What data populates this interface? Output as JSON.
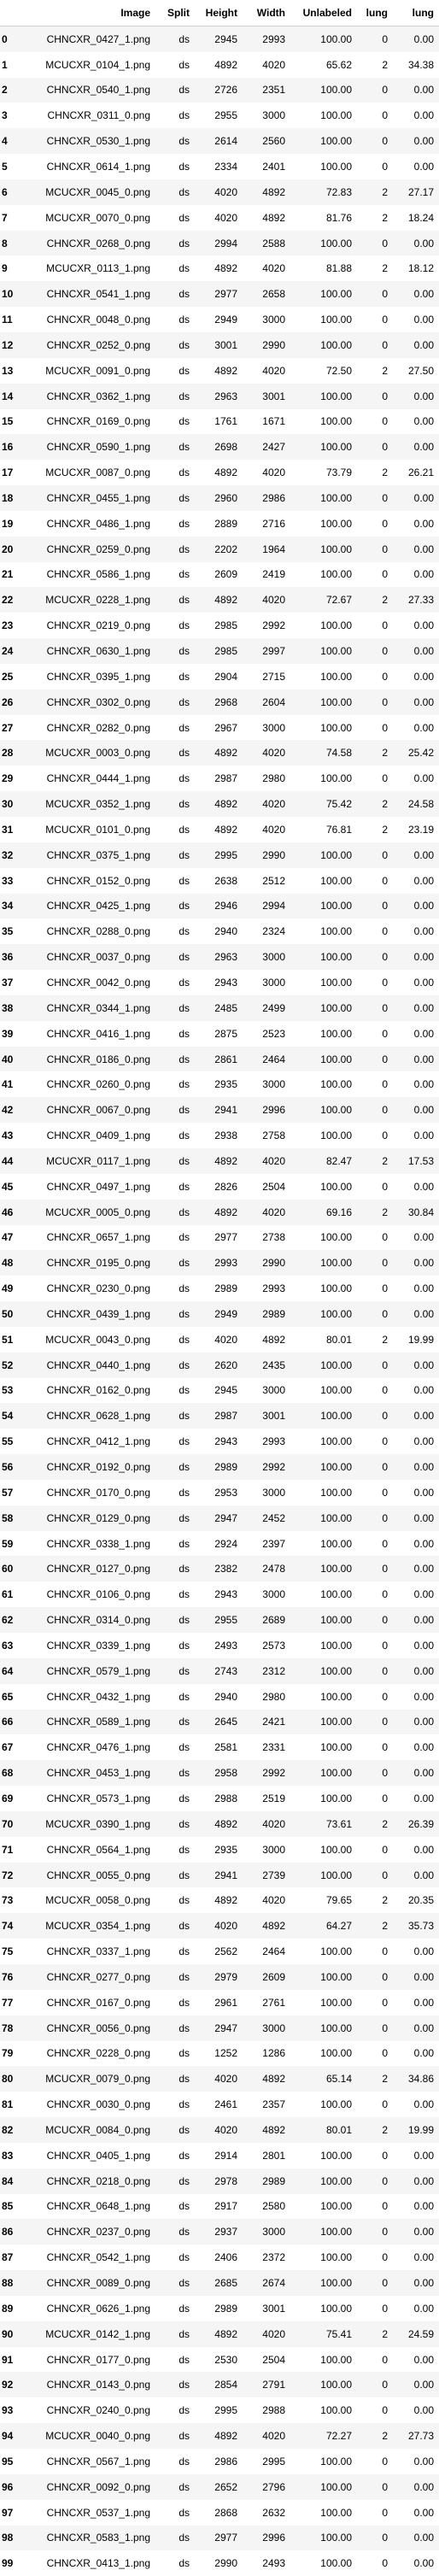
{
  "table": {
    "headers": [
      "",
      "Image",
      "Split",
      "Height",
      "Width",
      "Unlabeled",
      "lung",
      "lung"
    ],
    "rows": [
      [
        "0",
        "CHNCXR_0427_1.png",
        "ds",
        "2945",
        "2993",
        "100.00",
        "0",
        "0.00"
      ],
      [
        "1",
        "MCUCXR_0104_1.png",
        "ds",
        "4892",
        "4020",
        "65.62",
        "2",
        "34.38"
      ],
      [
        "2",
        "CHNCXR_0540_1.png",
        "ds",
        "2726",
        "2351",
        "100.00",
        "0",
        "0.00"
      ],
      [
        "3",
        "CHNCXR_0311_0.png",
        "ds",
        "2955",
        "3000",
        "100.00",
        "0",
        "0.00"
      ],
      [
        "4",
        "CHNCXR_0530_1.png",
        "ds",
        "2614",
        "2560",
        "100.00",
        "0",
        "0.00"
      ],
      [
        "5",
        "CHNCXR_0614_1.png",
        "ds",
        "2334",
        "2401",
        "100.00",
        "0",
        "0.00"
      ],
      [
        "6",
        "MCUCXR_0045_0.png",
        "ds",
        "4020",
        "4892",
        "72.83",
        "2",
        "27.17"
      ],
      [
        "7",
        "MCUCXR_0070_0.png",
        "ds",
        "4020",
        "4892",
        "81.76",
        "2",
        "18.24"
      ],
      [
        "8",
        "CHNCXR_0268_0.png",
        "ds",
        "2994",
        "2588",
        "100.00",
        "0",
        "0.00"
      ],
      [
        "9",
        "MCUCXR_0113_1.png",
        "ds",
        "4892",
        "4020",
        "81.88",
        "2",
        "18.12"
      ],
      [
        "10",
        "CHNCXR_0541_1.png",
        "ds",
        "2977",
        "2658",
        "100.00",
        "0",
        "0.00"
      ],
      [
        "11",
        "CHNCXR_0048_0.png",
        "ds",
        "2949",
        "3000",
        "100.00",
        "0",
        "0.00"
      ],
      [
        "12",
        "CHNCXR_0252_0.png",
        "ds",
        "3001",
        "2990",
        "100.00",
        "0",
        "0.00"
      ],
      [
        "13",
        "MCUCXR_0091_0.png",
        "ds",
        "4892",
        "4020",
        "72.50",
        "2",
        "27.50"
      ],
      [
        "14",
        "CHNCXR_0362_1.png",
        "ds",
        "2963",
        "3001",
        "100.00",
        "0",
        "0.00"
      ],
      [
        "15",
        "CHNCXR_0169_0.png",
        "ds",
        "1761",
        "1671",
        "100.00",
        "0",
        "0.00"
      ],
      [
        "16",
        "CHNCXR_0590_1.png",
        "ds",
        "2698",
        "2427",
        "100.00",
        "0",
        "0.00"
      ],
      [
        "17",
        "MCUCXR_0087_0.png",
        "ds",
        "4892",
        "4020",
        "73.79",
        "2",
        "26.21"
      ],
      [
        "18",
        "CHNCXR_0455_1.png",
        "ds",
        "2960",
        "2986",
        "100.00",
        "0",
        "0.00"
      ],
      [
        "19",
        "CHNCXR_0486_1.png",
        "ds",
        "2889",
        "2716",
        "100.00",
        "0",
        "0.00"
      ],
      [
        "20",
        "CHNCXR_0259_0.png",
        "ds",
        "2202",
        "1964",
        "100.00",
        "0",
        "0.00"
      ],
      [
        "21",
        "CHNCXR_0586_1.png",
        "ds",
        "2609",
        "2419",
        "100.00",
        "0",
        "0.00"
      ],
      [
        "22",
        "MCUCXR_0228_1.png",
        "ds",
        "4892",
        "4020",
        "72.67",
        "2",
        "27.33"
      ],
      [
        "23",
        "CHNCXR_0219_0.png",
        "ds",
        "2985",
        "2992",
        "100.00",
        "0",
        "0.00"
      ],
      [
        "24",
        "CHNCXR_0630_1.png",
        "ds",
        "2985",
        "2997",
        "100.00",
        "0",
        "0.00"
      ],
      [
        "25",
        "CHNCXR_0395_1.png",
        "ds",
        "2904",
        "2715",
        "100.00",
        "0",
        "0.00"
      ],
      [
        "26",
        "CHNCXR_0302_0.png",
        "ds",
        "2968",
        "2604",
        "100.00",
        "0",
        "0.00"
      ],
      [
        "27",
        "CHNCXR_0282_0.png",
        "ds",
        "2967",
        "3000",
        "100.00",
        "0",
        "0.00"
      ],
      [
        "28",
        "MCUCXR_0003_0.png",
        "ds",
        "4892",
        "4020",
        "74.58",
        "2",
        "25.42"
      ],
      [
        "29",
        "CHNCXR_0444_1.png",
        "ds",
        "2987",
        "2980",
        "100.00",
        "0",
        "0.00"
      ],
      [
        "30",
        "MCUCXR_0352_1.png",
        "ds",
        "4892",
        "4020",
        "75.42",
        "2",
        "24.58"
      ],
      [
        "31",
        "MCUCXR_0101_0.png",
        "ds",
        "4892",
        "4020",
        "76.81",
        "2",
        "23.19"
      ],
      [
        "32",
        "CHNCXR_0375_1.png",
        "ds",
        "2995",
        "2990",
        "100.00",
        "0",
        "0.00"
      ],
      [
        "33",
        "CHNCXR_0152_0.png",
        "ds",
        "2638",
        "2512",
        "100.00",
        "0",
        "0.00"
      ],
      [
        "34",
        "CHNCXR_0425_1.png",
        "ds",
        "2946",
        "2994",
        "100.00",
        "0",
        "0.00"
      ],
      [
        "35",
        "CHNCXR_0288_0.png",
        "ds",
        "2940",
        "2324",
        "100.00",
        "0",
        "0.00"
      ],
      [
        "36",
        "CHNCXR_0037_0.png",
        "ds",
        "2963",
        "3000",
        "100.00",
        "0",
        "0.00"
      ],
      [
        "37",
        "CHNCXR_0042_0.png",
        "ds",
        "2943",
        "3000",
        "100.00",
        "0",
        "0.00"
      ],
      [
        "38",
        "CHNCXR_0344_1.png",
        "ds",
        "2485",
        "2499",
        "100.00",
        "0",
        "0.00"
      ],
      [
        "39",
        "CHNCXR_0416_1.png",
        "ds",
        "2875",
        "2523",
        "100.00",
        "0",
        "0.00"
      ],
      [
        "40",
        "CHNCXR_0186_0.png",
        "ds",
        "2861",
        "2464",
        "100.00",
        "0",
        "0.00"
      ],
      [
        "41",
        "CHNCXR_0260_0.png",
        "ds",
        "2935",
        "3000",
        "100.00",
        "0",
        "0.00"
      ],
      [
        "42",
        "CHNCXR_0067_0.png",
        "ds",
        "2941",
        "2996",
        "100.00",
        "0",
        "0.00"
      ],
      [
        "43",
        "CHNCXR_0409_1.png",
        "ds",
        "2938",
        "2758",
        "100.00",
        "0",
        "0.00"
      ],
      [
        "44",
        "MCUCXR_0117_1.png",
        "ds",
        "4892",
        "4020",
        "82.47",
        "2",
        "17.53"
      ],
      [
        "45",
        "CHNCXR_0497_1.png",
        "ds",
        "2826",
        "2504",
        "100.00",
        "0",
        "0.00"
      ],
      [
        "46",
        "MCUCXR_0005_0.png",
        "ds",
        "4892",
        "4020",
        "69.16",
        "2",
        "30.84"
      ],
      [
        "47",
        "CHNCXR_0657_1.png",
        "ds",
        "2977",
        "2738",
        "100.00",
        "0",
        "0.00"
      ],
      [
        "48",
        "CHNCXR_0195_0.png",
        "ds",
        "2993",
        "2990",
        "100.00",
        "0",
        "0.00"
      ],
      [
        "49",
        "CHNCXR_0230_0.png",
        "ds",
        "2989",
        "2993",
        "100.00",
        "0",
        "0.00"
      ],
      [
        "50",
        "CHNCXR_0439_1.png",
        "ds",
        "2949",
        "2989",
        "100.00",
        "0",
        "0.00"
      ],
      [
        "51",
        "MCUCXR_0043_0.png",
        "ds",
        "4020",
        "4892",
        "80.01",
        "2",
        "19.99"
      ],
      [
        "52",
        "CHNCXR_0440_1.png",
        "ds",
        "2620",
        "2435",
        "100.00",
        "0",
        "0.00"
      ],
      [
        "53",
        "CHNCXR_0162_0.png",
        "ds",
        "2945",
        "3000",
        "100.00",
        "0",
        "0.00"
      ],
      [
        "54",
        "CHNCXR_0628_1.png",
        "ds",
        "2987",
        "3001",
        "100.00",
        "0",
        "0.00"
      ],
      [
        "55",
        "CHNCXR_0412_1.png",
        "ds",
        "2943",
        "2993",
        "100.00",
        "0",
        "0.00"
      ],
      [
        "56",
        "CHNCXR_0192_0.png",
        "ds",
        "2989",
        "2992",
        "100.00",
        "0",
        "0.00"
      ],
      [
        "57",
        "CHNCXR_0170_0.png",
        "ds",
        "2953",
        "3000",
        "100.00",
        "0",
        "0.00"
      ],
      [
        "58",
        "CHNCXR_0129_0.png",
        "ds",
        "2947",
        "2452",
        "100.00",
        "0",
        "0.00"
      ],
      [
        "59",
        "CHNCXR_0338_1.png",
        "ds",
        "2924",
        "2397",
        "100.00",
        "0",
        "0.00"
      ],
      [
        "60",
        "CHNCXR_0127_0.png",
        "ds",
        "2382",
        "2478",
        "100.00",
        "0",
        "0.00"
      ],
      [
        "61",
        "CHNCXR_0106_0.png",
        "ds",
        "2943",
        "3000",
        "100.00",
        "0",
        "0.00"
      ],
      [
        "62",
        "CHNCXR_0314_0.png",
        "ds",
        "2955",
        "2689",
        "100.00",
        "0",
        "0.00"
      ],
      [
        "63",
        "CHNCXR_0339_1.png",
        "ds",
        "2493",
        "2573",
        "100.00",
        "0",
        "0.00"
      ],
      [
        "64",
        "CHNCXR_0579_1.png",
        "ds",
        "2743",
        "2312",
        "100.00",
        "0",
        "0.00"
      ],
      [
        "65",
        "CHNCXR_0432_1.png",
        "ds",
        "2940",
        "2980",
        "100.00",
        "0",
        "0.00"
      ],
      [
        "66",
        "CHNCXR_0589_1.png",
        "ds",
        "2645",
        "2421",
        "100.00",
        "0",
        "0.00"
      ],
      [
        "67",
        "CHNCXR_0476_1.png",
        "ds",
        "2581",
        "2331",
        "100.00",
        "0",
        "0.00"
      ],
      [
        "68",
        "CHNCXR_0453_1.png",
        "ds",
        "2958",
        "2992",
        "100.00",
        "0",
        "0.00"
      ],
      [
        "69",
        "CHNCXR_0573_1.png",
        "ds",
        "2988",
        "2519",
        "100.00",
        "0",
        "0.00"
      ],
      [
        "70",
        "MCUCXR_0390_1.png",
        "ds",
        "4892",
        "4020",
        "73.61",
        "2",
        "26.39"
      ],
      [
        "71",
        "CHNCXR_0564_1.png",
        "ds",
        "2935",
        "3000",
        "100.00",
        "0",
        "0.00"
      ],
      [
        "72",
        "CHNCXR_0055_0.png",
        "ds",
        "2941",
        "2739",
        "100.00",
        "0",
        "0.00"
      ],
      [
        "73",
        "MCUCXR_0058_0.png",
        "ds",
        "4892",
        "4020",
        "79.65",
        "2",
        "20.35"
      ],
      [
        "74",
        "MCUCXR_0354_1.png",
        "ds",
        "4020",
        "4892",
        "64.27",
        "2",
        "35.73"
      ],
      [
        "75",
        "CHNCXR_0337_1.png",
        "ds",
        "2562",
        "2464",
        "100.00",
        "0",
        "0.00"
      ],
      [
        "76",
        "CHNCXR_0277_0.png",
        "ds",
        "2979",
        "2609",
        "100.00",
        "0",
        "0.00"
      ],
      [
        "77",
        "CHNCXR_0167_0.png",
        "ds",
        "2961",
        "2761",
        "100.00",
        "0",
        "0.00"
      ],
      [
        "78",
        "CHNCXR_0056_0.png",
        "ds",
        "2947",
        "3000",
        "100.00",
        "0",
        "0.00"
      ],
      [
        "79",
        "CHNCXR_0228_0.png",
        "ds",
        "1252",
        "1286",
        "100.00",
        "0",
        "0.00"
      ],
      [
        "80",
        "MCUCXR_0079_0.png",
        "ds",
        "4020",
        "4892",
        "65.14",
        "2",
        "34.86"
      ],
      [
        "81",
        "CHNCXR_0030_0.png",
        "ds",
        "2461",
        "2357",
        "100.00",
        "0",
        "0.00"
      ],
      [
        "82",
        "MCUCXR_0084_0.png",
        "ds",
        "4020",
        "4892",
        "80.01",
        "2",
        "19.99"
      ],
      [
        "83",
        "CHNCXR_0405_1.png",
        "ds",
        "2914",
        "2801",
        "100.00",
        "0",
        "0.00"
      ],
      [
        "84",
        "CHNCXR_0218_0.png",
        "ds",
        "2978",
        "2989",
        "100.00",
        "0",
        "0.00"
      ],
      [
        "85",
        "CHNCXR_0648_1.png",
        "ds",
        "2917",
        "2580",
        "100.00",
        "0",
        "0.00"
      ],
      [
        "86",
        "CHNCXR_0237_0.png",
        "ds",
        "2937",
        "3000",
        "100.00",
        "0",
        "0.00"
      ],
      [
        "87",
        "CHNCXR_0542_1.png",
        "ds",
        "2406",
        "2372",
        "100.00",
        "0",
        "0.00"
      ],
      [
        "88",
        "CHNCXR_0089_0.png",
        "ds",
        "2685",
        "2674",
        "100.00",
        "0",
        "0.00"
      ],
      [
        "89",
        "CHNCXR_0626_1.png",
        "ds",
        "2989",
        "3001",
        "100.00",
        "0",
        "0.00"
      ],
      [
        "90",
        "MCUCXR_0142_1.png",
        "ds",
        "4892",
        "4020",
        "75.41",
        "2",
        "24.59"
      ],
      [
        "91",
        "CHNCXR_0177_0.png",
        "ds",
        "2530",
        "2504",
        "100.00",
        "0",
        "0.00"
      ],
      [
        "92",
        "CHNCXR_0143_0.png",
        "ds",
        "2854",
        "2791",
        "100.00",
        "0",
        "0.00"
      ],
      [
        "93",
        "CHNCXR_0240_0.png",
        "ds",
        "2995",
        "2988",
        "100.00",
        "0",
        "0.00"
      ],
      [
        "94",
        "MCUCXR_0040_0.png",
        "ds",
        "4892",
        "4020",
        "72.27",
        "2",
        "27.73"
      ],
      [
        "95",
        "CHNCXR_0567_1.png",
        "ds",
        "2986",
        "2995",
        "100.00",
        "0",
        "0.00"
      ],
      [
        "96",
        "CHNCXR_0092_0.png",
        "ds",
        "2652",
        "2796",
        "100.00",
        "0",
        "0.00"
      ],
      [
        "97",
        "CHNCXR_0537_1.png",
        "ds",
        "2868",
        "2632",
        "100.00",
        "0",
        "0.00"
      ],
      [
        "98",
        "CHNCXR_0583_1.png",
        "ds",
        "2977",
        "2996",
        "100.00",
        "0",
        "0.00"
      ],
      [
        "99",
        "CHNCXR_0413_1.png",
        "ds",
        "2990",
        "2493",
        "100.00",
        "0",
        "0.00"
      ]
    ]
  }
}
